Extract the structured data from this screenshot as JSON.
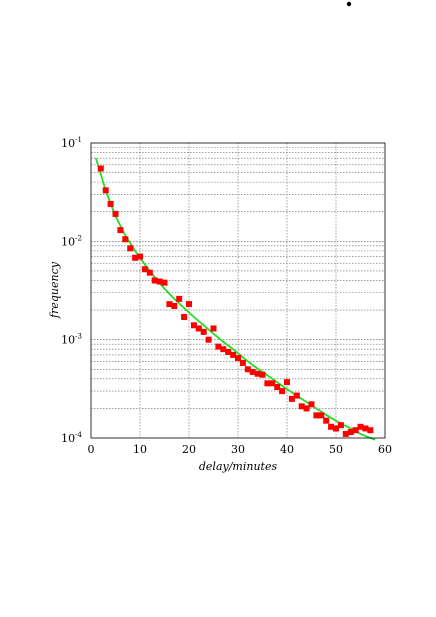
{
  "chart_data": {
    "type": "scatter",
    "title": "",
    "xlabel": "delay/minutes",
    "ylabel": "frequency",
    "xlim": [
      0,
      60
    ],
    "ylim": [
      0.0001,
      0.1
    ],
    "yscale": "log",
    "grid": true,
    "x_ticks": [
      0,
      10,
      20,
      30,
      40,
      50,
      60
    ],
    "x_tick_labels": [
      "0",
      "10",
      "20",
      "30",
      "40",
      "50",
      "60"
    ],
    "y_ticks": [
      0.0001,
      0.001,
      0.01,
      0.1
    ],
    "y_tick_base": [
      "10",
      "10",
      "10",
      "10"
    ],
    "y_tick_exp": [
      "-4",
      "-3",
      "-2",
      "-1"
    ],
    "series": [
      {
        "type": "scatter",
        "color": "#ff0000",
        "marker": "square",
        "x": [
          2,
          3,
          4,
          5,
          6,
          7,
          8,
          9,
          10,
          11,
          12,
          13,
          14,
          15,
          16,
          17,
          18,
          19,
          20,
          21,
          22,
          23,
          24,
          25,
          26,
          27,
          28,
          29,
          30,
          31,
          32,
          33,
          34,
          35,
          36,
          37,
          38,
          39,
          40,
          41,
          42,
          43,
          44,
          45,
          46,
          47,
          48,
          49,
          50,
          51,
          52,
          53,
          54,
          55,
          56,
          57
        ],
        "y": [
          0.055,
          0.033,
          0.024,
          0.019,
          0.013,
          0.0105,
          0.0085,
          0.0068,
          0.007,
          0.0052,
          0.0048,
          0.004,
          0.0039,
          0.0038,
          0.0023,
          0.0022,
          0.0026,
          0.0017,
          0.0023,
          0.0014,
          0.0013,
          0.0012,
          0.001,
          0.0013,
          0.00085,
          0.0008,
          0.00075,
          0.0007,
          0.00065,
          0.00058,
          0.0005,
          0.00047,
          0.00045,
          0.00044,
          0.00036,
          0.00036,
          0.00033,
          0.0003,
          0.00037,
          0.00025,
          0.00027,
          0.00021,
          0.0002,
          0.00022,
          0.00017,
          0.00017,
          0.00015,
          0.00013,
          0.000125,
          0.000135,
          0.00011,
          0.000115,
          0.00012,
          0.00013,
          0.000125,
          0.00012
        ]
      },
      {
        "type": "line",
        "color": "#22dd22",
        "x": [
          1,
          3,
          5,
          7,
          9,
          11,
          13,
          15,
          17,
          19,
          21,
          23,
          25,
          27,
          29,
          31,
          33,
          35,
          37,
          39,
          41,
          43,
          45,
          47,
          49,
          51,
          53,
          55,
          57,
          58
        ],
        "y": [
          0.07,
          0.033,
          0.018,
          0.0115,
          0.008,
          0.0058,
          0.0043,
          0.0033,
          0.0026,
          0.0021,
          0.0017,
          0.0014,
          0.00115,
          0.00095,
          0.0008,
          0.00066,
          0.00055,
          0.00047,
          0.0004,
          0.00034,
          0.00029,
          0.00025,
          0.000215,
          0.000185,
          0.00016,
          0.00014,
          0.000125,
          0.00011,
          0.0001,
          9.6e-05
        ]
      }
    ]
  },
  "decor": {
    "dot_color": "#000000"
  }
}
